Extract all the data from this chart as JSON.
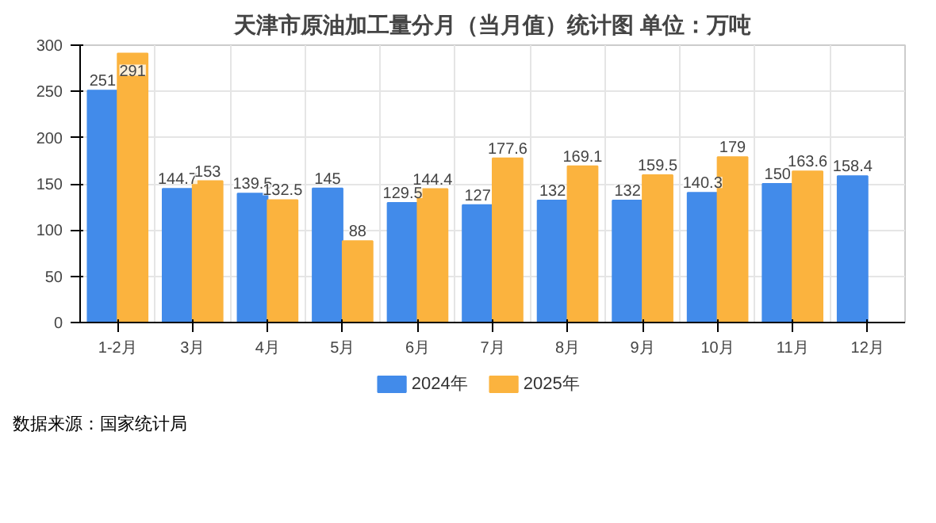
{
  "chart_data": {
    "type": "bar",
    "title": "天津市原油加工量分月（当月值）统计图 单位：万吨",
    "categories": [
      "1-2月",
      "3月",
      "4月",
      "5月",
      "6月",
      "7月",
      "8月",
      "9月",
      "10月",
      "11月",
      "12月"
    ],
    "series": [
      {
        "name": "2024年",
        "color": "#428bea",
        "values": [
          251,
          144.7,
          139.5,
          145,
          129.5,
          127,
          132,
          132,
          140.3,
          150,
          158.4
        ]
      },
      {
        "name": "2025年",
        "color": "#fbb33e",
        "values": [
          291,
          153,
          132.5,
          88,
          144.4,
          177.6,
          169.1,
          159.5,
          179,
          163.6,
          null
        ]
      }
    ],
    "ylim": [
      0,
      300
    ],
    "yticks": [
      0,
      50,
      100,
      150,
      200,
      250,
      300
    ],
    "grid": true,
    "legend": "bottom",
    "data_labels": true,
    "annotations": [
      "数据来源：国家统计局"
    ]
  }
}
